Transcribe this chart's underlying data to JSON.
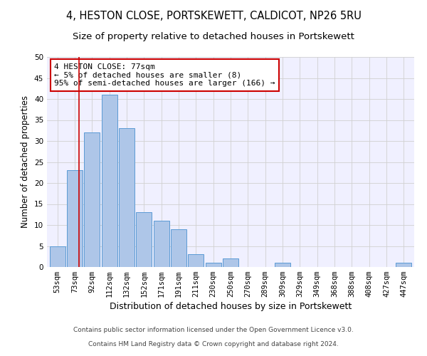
{
  "title1": "4, HESTON CLOSE, PORTSKEWETT, CALDICOT, NP26 5RU",
  "title2": "Size of property relative to detached houses in Portskewett",
  "xlabel": "Distribution of detached houses by size in Portskewett",
  "ylabel": "Number of detached properties",
  "categories": [
    "53sqm",
    "73sqm",
    "92sqm",
    "112sqm",
    "132sqm",
    "152sqm",
    "171sqm",
    "191sqm",
    "211sqm",
    "230sqm",
    "250sqm",
    "270sqm",
    "289sqm",
    "309sqm",
    "329sqm",
    "349sqm",
    "368sqm",
    "388sqm",
    "408sqm",
    "427sqm",
    "447sqm"
  ],
  "values": [
    5,
    23,
    32,
    41,
    33,
    13,
    11,
    9,
    3,
    1,
    2,
    0,
    0,
    1,
    0,
    0,
    0,
    0,
    0,
    0,
    1
  ],
  "bar_color": "#aec6e8",
  "bar_edge_color": "#5b9bd5",
  "red_line_x": 1.25,
  "annotation_text": "4 HESTON CLOSE: 77sqm\n← 5% of detached houses are smaller (8)\n95% of semi-detached houses are larger (166) →",
  "annotation_box_color": "#ffffff",
  "annotation_box_edge_color": "#cc0000",
  "footer1": "Contains HM Land Registry data © Crown copyright and database right 2024.",
  "footer2": "Contains public sector information licensed under the Open Government Licence v3.0.",
  "ylim": [
    0,
    50
  ],
  "yticks": [
    0,
    5,
    10,
    15,
    20,
    25,
    30,
    35,
    40,
    45,
    50
  ],
  "grid_color": "#d0d0d0",
  "background_color": "#f0f0ff",
  "title_fontsize": 10.5,
  "subtitle_fontsize": 9.5,
  "tick_fontsize": 7.5,
  "ylabel_fontsize": 8.5,
  "xlabel_fontsize": 9,
  "footer_fontsize": 6.5,
  "annot_fontsize": 8
}
